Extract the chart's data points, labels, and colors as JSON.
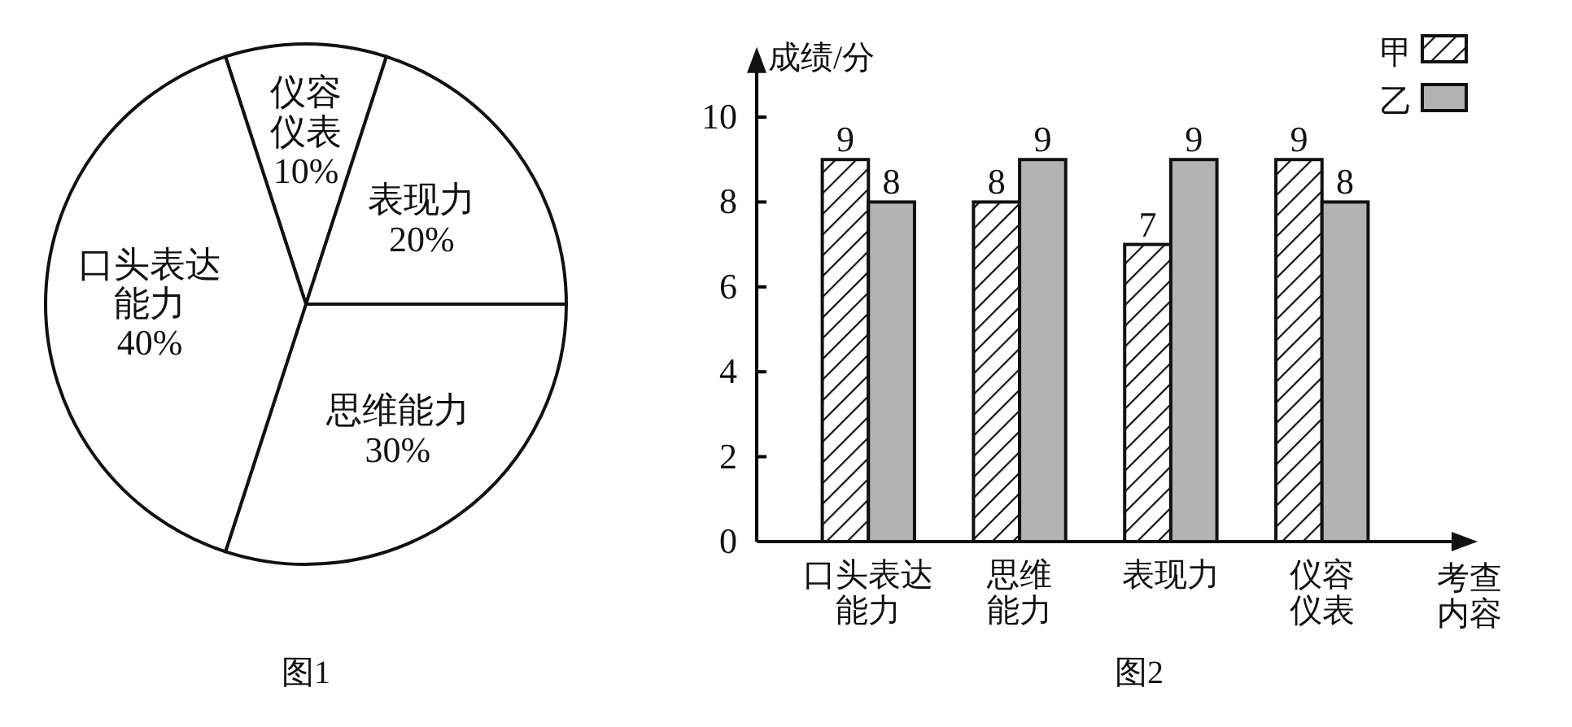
{
  "chart_data": [
    {
      "type": "pie",
      "title": "图1",
      "categories": [
        "仪容仪表",
        "表现力",
        "思维能力",
        "口头表达能力"
      ],
      "values": [
        10,
        20,
        30,
        40
      ],
      "value_labels": [
        "10%",
        "20%",
        "30%",
        "40%"
      ],
      "colors": [
        "#ffffff",
        "#ffffff",
        "#ffffff",
        "#ffffff"
      ]
    },
    {
      "type": "bar",
      "title": "图2",
      "ylabel": "成绩/分",
      "xlabel": "考查内容",
      "categories": [
        "口头表达能力",
        "思维能力",
        "表现力",
        "仪容仪表"
      ],
      "series": [
        {
          "name": "甲",
          "color": "#111111",
          "values": [
            9,
            8,
            7,
            9
          ]
        },
        {
          "name": "乙",
          "color": "#b3b3b3",
          "values": [
            8,
            9,
            9,
            8
          ]
        }
      ],
      "ylim": [
        0,
        11.5
      ],
      "yticks": [
        0,
        2,
        4,
        6,
        8,
        10
      ],
      "data_labels": true,
      "legend": "top right"
    }
  ]
}
